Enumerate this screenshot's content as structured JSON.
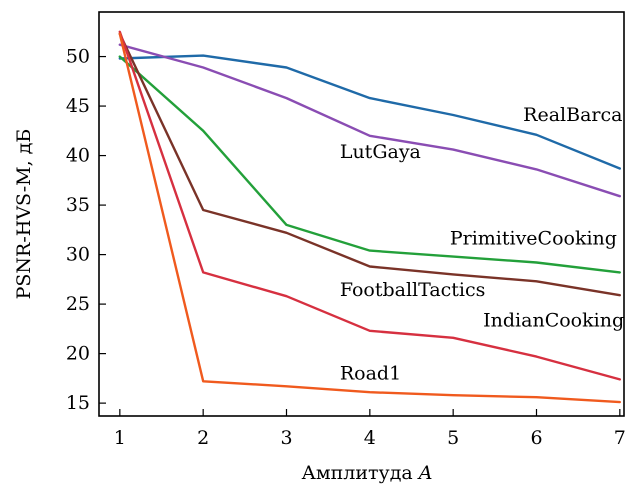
{
  "chart_data": {
    "type": "line",
    "xlabel": "Амплитуда",
    "xlabel_var": "A",
    "ylabel": "PSNR-HVS-M, дБ",
    "xlim": [
      0.75,
      7.05
    ],
    "ylim": [
      13.7,
      54.5
    ],
    "xticks": [
      1,
      2,
      3,
      4,
      5,
      6,
      7
    ],
    "yticks": [
      15,
      20,
      25,
      30,
      35,
      40,
      45,
      50
    ],
    "grid": false,
    "legend": "inline-labels",
    "x": [
      1,
      2,
      3,
      4,
      5,
      6,
      7
    ],
    "series": [
      {
        "name": "RealBarca",
        "color": "#1f6aa8",
        "values": [
          49.8,
          50.1,
          48.9,
          45.8,
          44.1,
          42.1,
          38.7
        ]
      },
      {
        "name": "LutGaya",
        "color": "#8a4db3",
        "values": [
          51.2,
          48.9,
          45.8,
          42.0,
          40.6,
          38.6,
          35.9
        ]
      },
      {
        "name": "PrimitiveCooking",
        "color": "#23a03a",
        "values": [
          50.0,
          42.5,
          33.0,
          30.4,
          29.8,
          29.2,
          28.2
        ]
      },
      {
        "name": "FootballTactics",
        "color": "#7a3328",
        "values": [
          52.3,
          34.5,
          32.2,
          28.8,
          28.0,
          27.3,
          25.9
        ]
      },
      {
        "name": "IndianCooking",
        "color": "#d63040",
        "values": [
          52.5,
          28.2,
          25.8,
          22.3,
          21.6,
          19.7,
          17.4
        ]
      },
      {
        "name": "Road1",
        "color": "#f05a1e",
        "values": [
          52.3,
          17.2,
          16.7,
          16.1,
          15.8,
          15.6,
          15.1
        ]
      }
    ]
  }
}
